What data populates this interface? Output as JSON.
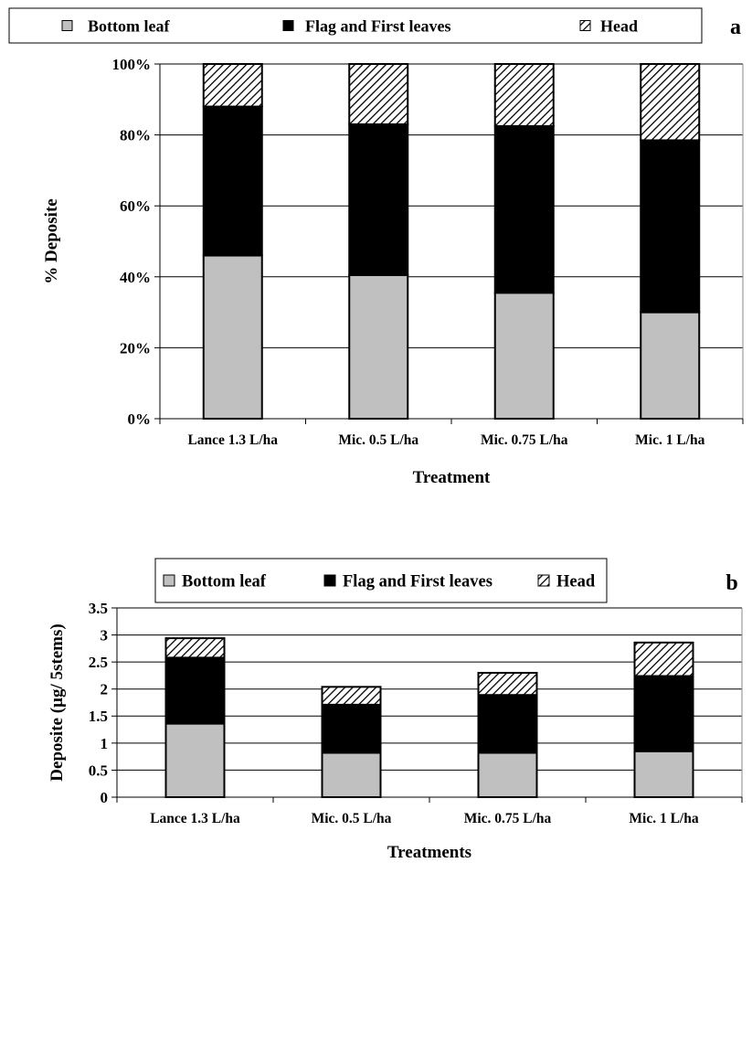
{
  "chart_data": [
    {
      "panel_label": "a",
      "type": "bar",
      "stacked": "percent",
      "categories": [
        "Lance 1.3 L/ha",
        "Mic. 0.5 L/ha",
        "Mic. 0.75 L/ha",
        "Mic. 1 L/ha"
      ],
      "series": [
        {
          "name": "Bottom leaf",
          "values": [
            46,
            40.5,
            35.5,
            30
          ],
          "fill": "#c0c0c0"
        },
        {
          "name": "Flag and First leaves",
          "values": [
            42,
            42.5,
            47,
            48.5
          ],
          "fill": "#000000"
        },
        {
          "name": "Head",
          "values": [
            12,
            17,
            17.5,
            21.5
          ],
          "fill": "hatch"
        }
      ],
      "xlabel": "Treatment",
      "ylabel": "% Deposite",
      "ylim": [
        0,
        100
      ],
      "yticks": [
        "0%",
        "20%",
        "40%",
        "60%",
        "80%",
        "100%"
      ],
      "grid": true,
      "legend": "top"
    },
    {
      "panel_label": "b",
      "type": "bar",
      "stacked": "value",
      "categories": [
        "Lance 1.3 L/ha",
        "Mic. 0.5 L/ha",
        "Mic. 0.75 L/ha",
        "Mic. 1 L/ha"
      ],
      "series": [
        {
          "name": "Bottom leaf",
          "values": [
            1.36,
            0.82,
            0.82,
            0.85
          ],
          "fill": "#c0c0c0"
        },
        {
          "name": "Flag and First leaves",
          "values": [
            1.22,
            0.89,
            1.07,
            1.39
          ],
          "fill": "#000000"
        },
        {
          "name": "Head",
          "values": [
            0.36,
            0.33,
            0.41,
            0.62
          ],
          "fill": "hatch"
        }
      ],
      "xlabel": "Treatments",
      "ylabel": "Deposite (µg/ 5stems)",
      "ylim": [
        0,
        3.5
      ],
      "yticks": [
        "0",
        "0.5",
        "1",
        "1.5",
        "2",
        "2.5",
        "3",
        "3.5"
      ],
      "grid": true,
      "legend": "top"
    }
  ]
}
